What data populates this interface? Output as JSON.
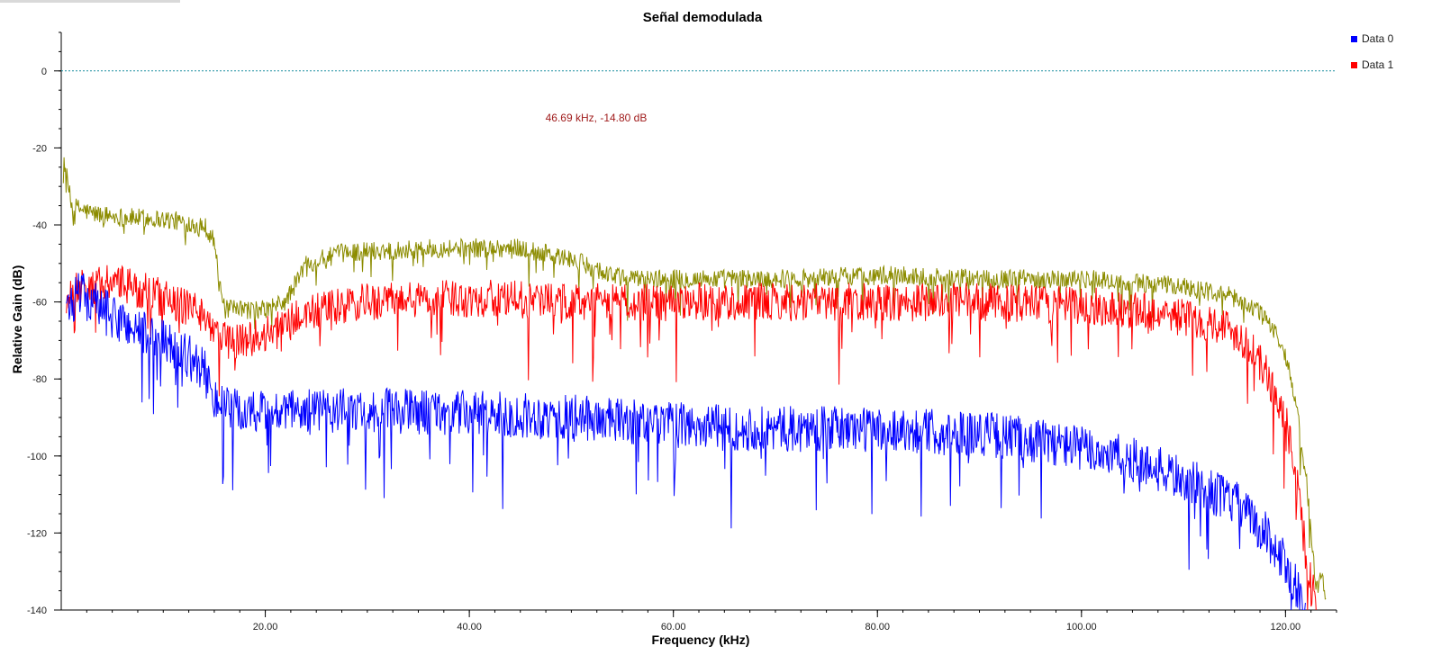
{
  "chart_data": {
    "type": "line",
    "title": "Señal demodulada",
    "xlabel": "Frequency (kHz)",
    "ylabel": "Relative Gain (dB)",
    "xlim": [
      0,
      125
    ],
    "ylim": [
      -140,
      10
    ],
    "x_ticks": [
      20,
      40,
      60,
      80,
      100,
      120
    ],
    "x_tick_labels": [
      "20.00",
      "40.00",
      "60.00",
      "80.00",
      "100.00",
      "120.00"
    ],
    "y_ticks": [
      0,
      -20,
      -40,
      -60,
      -80,
      -100,
      -120,
      -140
    ],
    "y_tick_labels": [
      "0",
      "-20",
      "-40",
      "-60",
      "-80",
      "-100",
      "-120",
      "-140"
    ],
    "reference_line_y": 0,
    "legend_position": "top-right",
    "marker_annotation": "46.69 kHz, -14.80 dB",
    "series": [
      {
        "name": "Data 0",
        "color": "#0000ff",
        "noisy": true,
        "noise_amplitude": 6,
        "x": [
          0.5,
          2,
          5,
          8,
          12,
          14,
          15,
          16,
          20,
          30,
          40,
          50,
          60,
          70,
          80,
          90,
          96,
          100,
          105,
          110,
          115,
          118,
          120,
          121,
          122
        ],
        "y": [
          -60,
          -58,
          -64,
          -68,
          -73,
          -78,
          -84,
          -88,
          -89,
          -88,
          -89,
          -90,
          -92,
          -93,
          -93,
          -94,
          -96,
          -98,
          -101,
          -106,
          -112,
          -120,
          -128,
          -134,
          -140
        ]
      },
      {
        "name": "Data 1",
        "color": "#ff0000",
        "noisy": true,
        "noise_amplitude": 5,
        "x": [
          0.5,
          2,
          5,
          8,
          12,
          14,
          15,
          16,
          20,
          24,
          30,
          40,
          50,
          60,
          70,
          80,
          90,
          100,
          105,
          110,
          114,
          116,
          118,
          120,
          121,
          122,
          123
        ],
        "y": [
          -58,
          -56,
          -55,
          -57,
          -61,
          -63,
          -67,
          -70,
          -69,
          -63,
          -60,
          -59,
          -60,
          -60,
          -60,
          -60,
          -60,
          -61,
          -62,
          -64,
          -66,
          -70,
          -78,
          -90,
          -105,
          -125,
          -140
        ]
      },
      {
        "name": "",
        "color": "#8c8c00",
        "noisy": true,
        "noise_amplitude": 2.5,
        "x": [
          0.2,
          1,
          3,
          6,
          10,
          14,
          15,
          15.5,
          16,
          20,
          22,
          24,
          28,
          38,
          45,
          50,
          55,
          60,
          70,
          80,
          90,
          100,
          105,
          110,
          114,
          116,
          118,
          119,
          120,
          121,
          122,
          122.5,
          123,
          123.5,
          124
        ],
        "y": [
          -22,
          -35,
          -37,
          -38,
          -38.5,
          -40,
          -44,
          -56,
          -62,
          -62,
          -60,
          -50,
          -47,
          -46,
          -46,
          -49,
          -54,
          -54,
          -54,
          -53,
          -54,
          -54,
          -55,
          -56,
          -58,
          -60,
          -64,
          -68,
          -74,
          -86,
          -105,
          -120,
          -135,
          -130,
          -139
        ]
      }
    ]
  }
}
